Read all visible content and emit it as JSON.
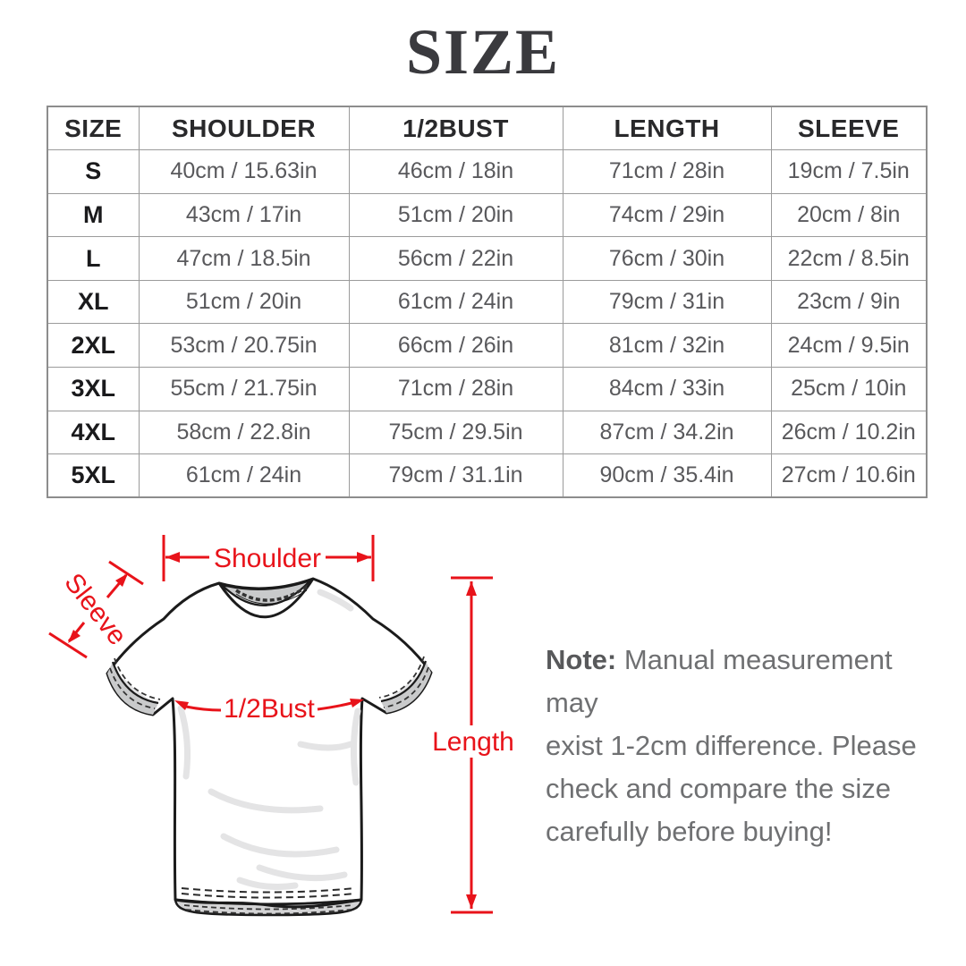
{
  "page": {
    "title": "SIZE",
    "background": "#ffffff"
  },
  "table": {
    "headers": [
      "SIZE",
      "SHOULDER",
      "1/2BUST",
      "LENGTH",
      "SLEEVE"
    ],
    "rows": [
      [
        "S",
        "40cm / 15.63in",
        "46cm / 18in",
        "71cm / 28in",
        "19cm / 7.5in"
      ],
      [
        "M",
        "43cm / 17in",
        "51cm / 20in",
        "74cm / 29in",
        "20cm / 8in"
      ],
      [
        "L",
        "47cm / 18.5in",
        "56cm / 22in",
        "76cm / 30in",
        "22cm / 8.5in"
      ],
      [
        "XL",
        "51cm / 20in",
        "61cm / 24in",
        "79cm / 31in",
        "23cm / 9in"
      ],
      [
        "2XL",
        "53cm / 20.75in",
        "66cm / 26in",
        "81cm / 32in",
        "24cm / 9.5in"
      ],
      [
        "3XL",
        "55cm / 21.75in",
        "71cm / 28in",
        "84cm / 33in",
        "25cm / 10in"
      ],
      [
        "4XL",
        "58cm / 22.8in",
        "75cm / 29.5in",
        "87cm / 34.2in",
        "26cm / 10.2in"
      ],
      [
        "5XL",
        "61cm / 24in",
        "79cm / 31.1in",
        "90cm / 35.4in",
        "27cm / 10.6in"
      ]
    ]
  },
  "diagram": {
    "labels": {
      "shoulder": "Shoulder",
      "sleeve": "Sleeve",
      "bust": "1/2Bust",
      "length": "Length"
    },
    "accent_color": "#e8131a"
  },
  "note": {
    "prefix": "Note:",
    "lines": [
      "Manual measurement may",
      "exist 1-2cm difference. Please",
      "check and compare the size",
      "carefully before buying!"
    ]
  }
}
